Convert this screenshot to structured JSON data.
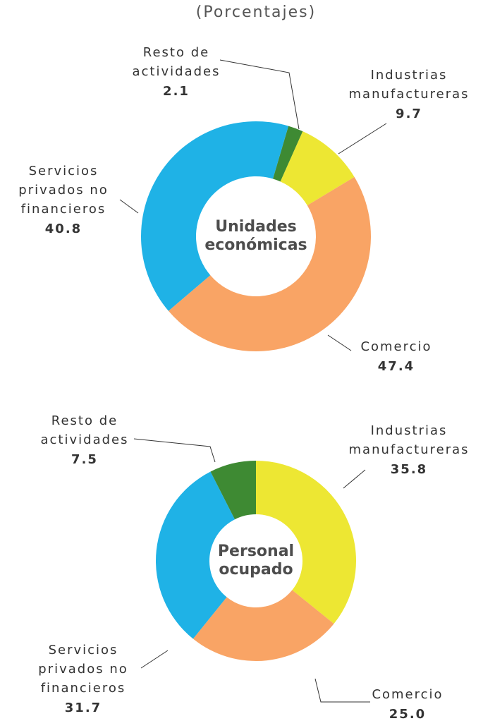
{
  "subtitle": "(Porcentajes)",
  "chart_data": [
    {
      "type": "donut",
      "center_label": [
        "Unidades",
        "económicas"
      ],
      "categories": [
        [
          "Industrias",
          "manufactureras"
        ],
        [
          "Comercio"
        ],
        [
          "Servicios",
          "privados no",
          "financieros"
        ],
        [
          "Resto de",
          "actividades"
        ]
      ],
      "values": [
        9.7,
        47.4,
        40.8,
        2.1
      ],
      "value_labels": [
        "9.7",
        "47.4",
        "40.8",
        "2.1"
      ],
      "colors": [
        "#ede733",
        "#f9a465",
        "#1fb2e6",
        "#3e8a33"
      ]
    },
    {
      "type": "donut",
      "center_label": [
        "Personal",
        "ocupado"
      ],
      "categories": [
        [
          "Industrias",
          "manufactureras"
        ],
        [
          "Comercio"
        ],
        [
          "Servicios",
          "privados no",
          "financieros"
        ],
        [
          "Resto de",
          "actividades"
        ]
      ],
      "values": [
        35.8,
        25.0,
        31.7,
        7.5
      ],
      "value_labels": [
        "35.8",
        "25.0",
        "31.7",
        "7.5"
      ],
      "colors": [
        "#ede733",
        "#f9a465",
        "#1fb2e6",
        "#3e8a33"
      ]
    }
  ]
}
